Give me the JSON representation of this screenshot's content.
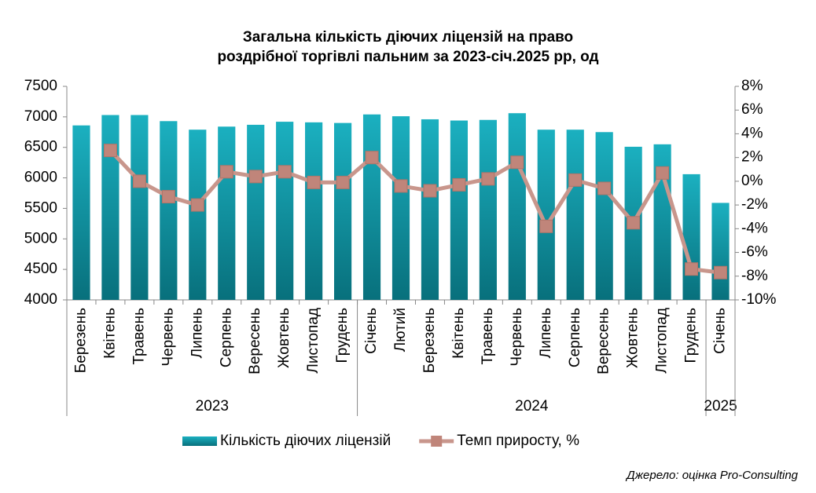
{
  "chart_data": {
    "type": "bar-line",
    "title": [
      "Загальна кількість діючих ліцензій на право",
      "роздрібної торгівлі пальним за 2023-січ.2025 рр, од"
    ],
    "categories": [
      "Березень",
      "Квітень",
      "Травень",
      "Червень",
      "Липень",
      "Серпень",
      "Вересень",
      "Жовтень",
      "Листопад",
      "Грудень",
      "Січень",
      "Лютий",
      "Березень",
      "Квітень",
      "Травень",
      "Червень",
      "Липень",
      "Серпень",
      "Вересень",
      "Жовтень",
      "Листопад",
      "Грудень",
      "Січень"
    ],
    "x_groups": [
      {
        "label": "2023",
        "span": 10
      },
      {
        "label": "2024",
        "span": 12
      },
      {
        "label": "2025",
        "span": 1
      }
    ],
    "series": [
      {
        "name": "Кількість діючих ліцензій",
        "type": "bar",
        "color": "#13a3b3",
        "values": [
          6860,
          7030,
          7030,
          6930,
          6790,
          6840,
          6870,
          6920,
          6910,
          6900,
          7040,
          7010,
          6960,
          6940,
          6950,
          7060,
          6790,
          6790,
          6750,
          6510,
          6550,
          6060,
          5590
        ]
      },
      {
        "name": "Темп приросту, %",
        "type": "line",
        "axis": "y2",
        "color": "#c8968c",
        "values": [
          null,
          2.6,
          0.0,
          -1.3,
          -2.0,
          0.8,
          0.4,
          0.8,
          -0.1,
          -0.1,
          2.0,
          -0.4,
          -0.8,
          -0.3,
          0.2,
          1.6,
          -3.8,
          0.1,
          -0.6,
          -3.5,
          0.7,
          -7.4,
          -7.7
        ]
      }
    ],
    "ylim": [
      4000,
      7500
    ],
    "yticks": [
      4000,
      4500,
      5000,
      5500,
      6000,
      6500,
      7000,
      7500
    ],
    "y2lim": [
      -10,
      8
    ],
    "y2ticks": [
      {
        "value": -10,
        "label": "-10%"
      },
      {
        "value": -8,
        "label": "-8%"
      },
      {
        "value": -6,
        "label": "-6%"
      },
      {
        "value": -4,
        "label": "-4%"
      },
      {
        "value": -2,
        "label": "-2%"
      },
      {
        "value": 0,
        "label": "0%"
      },
      {
        "value": 2,
        "label": "2%"
      },
      {
        "value": 4,
        "label": "4%"
      },
      {
        "value": 6,
        "label": "6%"
      },
      {
        "value": 8,
        "label": "8%"
      }
    ],
    "legend": "bottom",
    "source": "Джерело: оцінка Pro-Consulting"
  }
}
